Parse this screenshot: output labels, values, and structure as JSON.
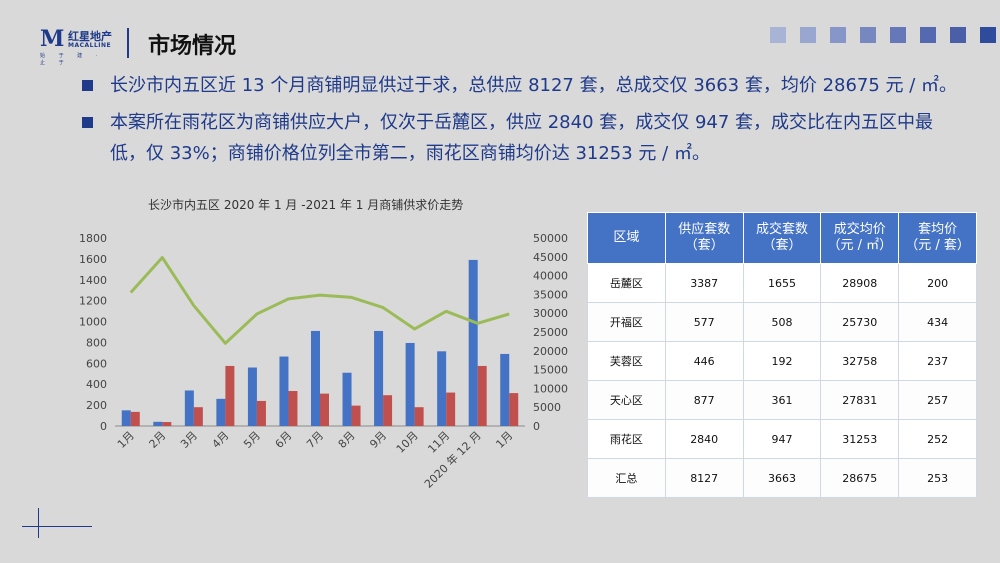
{
  "brand": {
    "letter": "M",
    "name_cn": "红星地产",
    "name_en": "MACALLINE",
    "tagline": "始 于 建 · 止 于"
  },
  "page_title": "市场情况",
  "header_squares": [
    "#a8b4d6",
    "#98a6d0",
    "#8796c8",
    "#7787c0",
    "#6678b8",
    "#5569b0",
    "#4a5fa8",
    "#2f4b9c"
  ],
  "bullets": [
    "长沙市内五区近 13 个月商铺明显供过于求，总供应 8127 套，总成交仅 3663 套，均价 28675 元 / ㎡。",
    "本案所在雨花区为商铺供应大户，仅次于岳麓区，供应 2840 套，成交仅 947 套，成交比在内五区中最低，仅 33%；商铺价格位列全市第二，雨花区商铺均价达 31253 元 / ㎡。"
  ],
  "chart_data": {
    "type": "bar",
    "title": "长沙市内五区 2020 年 1 月 -2021 年 1 月商铺供求价走势",
    "categories": [
      "1月",
      "2月",
      "3月",
      "4月",
      "5月",
      "6月",
      "7月",
      "8月",
      "9月",
      "10月",
      "11月",
      "2020 年 12 月",
      "1月"
    ],
    "series": [
      {
        "name": "供应套数",
        "type": "bar",
        "axis": "left",
        "color": "#4472c4",
        "values": [
          150,
          40,
          340,
          260,
          560,
          665,
          910,
          510,
          910,
          795,
          715,
          1590,
          690
        ]
      },
      {
        "name": "成交套数",
        "type": "bar",
        "axis": "left",
        "color": "#c0504d",
        "values": [
          135,
          38,
          180,
          575,
          240,
          335,
          310,
          195,
          295,
          180,
          320,
          575,
          315
        ]
      },
      {
        "name": "成交均价",
        "type": "line",
        "axis": "right",
        "color": "#9bbb59",
        "values": [
          35500,
          44800,
          32000,
          22000,
          29800,
          33800,
          34800,
          34200,
          31500,
          25800,
          30500,
          27300,
          29800
        ]
      }
    ],
    "y_left": {
      "min": 0,
      "max": 1800,
      "ticks": [
        "0",
        "200",
        "400",
        "600",
        "800",
        "1000",
        "1200",
        "1400",
        "1600",
        "1800"
      ]
    },
    "y_right": {
      "min": 0,
      "max": 50000,
      "ticks": [
        "0",
        "5000",
        "10000",
        "15000",
        "20000",
        "25000",
        "30000",
        "35000",
        "40000",
        "45000",
        "50000"
      ]
    }
  },
  "table": {
    "headers": [
      [
        "区域"
      ],
      [
        "供应套数",
        "（套）"
      ],
      [
        "成交套数",
        "（套）"
      ],
      [
        "成交均价",
        "（元 / ㎡）"
      ],
      [
        "套均价",
        "（元 / 套）"
      ]
    ],
    "rows": [
      [
        "岳麓区",
        "3387",
        "1655",
        "28908",
        "200"
      ],
      [
        "开福区",
        "577",
        "508",
        "25730",
        "434"
      ],
      [
        "芙蓉区",
        "446",
        "192",
        "32758",
        "237"
      ],
      [
        "天心区",
        "877",
        "361",
        "27831",
        "257"
      ],
      [
        "雨花区",
        "2840",
        "947",
        "31253",
        "252"
      ],
      [
        "汇总",
        "8127",
        "3663",
        "28675",
        "253"
      ]
    ]
  }
}
